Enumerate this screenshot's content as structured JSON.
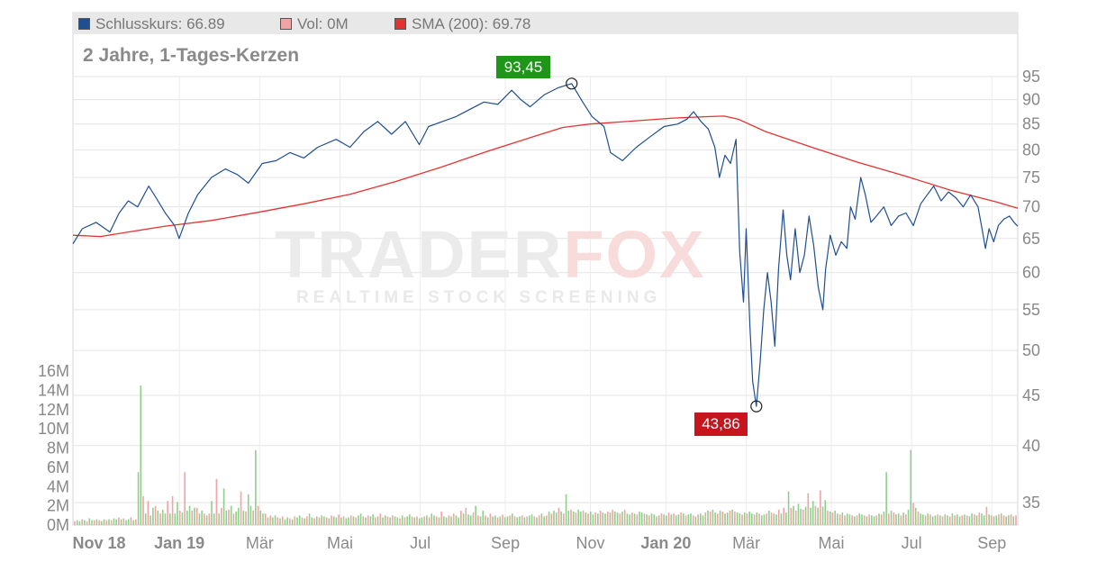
{
  "legend": {
    "close_label": "Schlusskurs: 66.89",
    "vol_label": "Vol: 0M",
    "sma_label": "SMA (200): 69.78"
  },
  "subtitle": "2 Jahre, 1-Tages-Kerzen",
  "watermark": {
    "brand_a": "TRADER",
    "brand_b": "FOX",
    "tagline": "REALTIME STOCK SCREENING"
  },
  "colors": {
    "price": "#1f4e91",
    "sma": "#e8312f",
    "high_badge": "#1e9618",
    "low_badge": "#c8141c",
    "vol_up": "#8ed08a",
    "vol_down": "#f2a3a6"
  },
  "chart_data": {
    "type": "line",
    "title": "2 Jahre, 1-Tages-Kerzen",
    "x_tick_labels": [
      "Nov 18",
      "Jan 19",
      "Mär",
      "Mai",
      "Jul",
      "Sep",
      "Nov",
      "Jan 20",
      "Mär",
      "Mai",
      "Jul",
      "Sep"
    ],
    "x_bold_ticks": [
      "Nov 18",
      "Jan 19",
      "Jan 20"
    ],
    "y_price_ticks": [
      95,
      90,
      85,
      80,
      75,
      70,
      65,
      60,
      55,
      50,
      45,
      40,
      35
    ],
    "y_price_scale": "log",
    "y_volume_ticks": [
      "16M",
      "14M",
      "12M",
      "10M",
      "8M",
      "6M",
      "4M",
      "2M",
      "0M"
    ],
    "volume_range": [
      0,
      16
    ],
    "annotations": {
      "high": "93,45",
      "low": "43,86"
    },
    "high_value": 93.45,
    "low_value": 43.86,
    "series": [
      {
        "name": "Schlusskurs",
        "points": [
          [
            0,
            64.2
          ],
          [
            10,
            66.5
          ],
          [
            25,
            67.5
          ],
          [
            40,
            66.0
          ],
          [
            50,
            69.0
          ],
          [
            60,
            71.0
          ],
          [
            70,
            70.0
          ],
          [
            82,
            73.5
          ],
          [
            90,
            71.5
          ],
          [
            100,
            69.0
          ],
          [
            110,
            67.0
          ],
          [
            115,
            65.0
          ],
          [
            125,
            69.0
          ],
          [
            135,
            72.0
          ],
          [
            150,
            75.0
          ],
          [
            165,
            76.5
          ],
          [
            178,
            75.5
          ],
          [
            190,
            74.0
          ],
          [
            205,
            77.5
          ],
          [
            220,
            78.0
          ],
          [
            235,
            79.5
          ],
          [
            250,
            78.5
          ],
          [
            265,
            80.5
          ],
          [
            285,
            82.0
          ],
          [
            300,
            80.5
          ],
          [
            315,
            83.5
          ],
          [
            330,
            85.5
          ],
          [
            345,
            83.0
          ],
          [
            360,
            85.5
          ],
          [
            375,
            81.0
          ],
          [
            385,
            84.5
          ],
          [
            400,
            85.5
          ],
          [
            415,
            86.5
          ],
          [
            430,
            88.0
          ],
          [
            445,
            89.5
          ],
          [
            460,
            89.0
          ],
          [
            475,
            92.0
          ],
          [
            485,
            90.0
          ],
          [
            495,
            88.5
          ],
          [
            510,
            91.0
          ],
          [
            525,
            92.5
          ],
          [
            540,
            93.45
          ],
          [
            552,
            89.5
          ],
          [
            562,
            86.5
          ],
          [
            575,
            84.5
          ],
          [
            582,
            79.5
          ],
          [
            595,
            78.0
          ],
          [
            610,
            80.5
          ],
          [
            625,
            82.5
          ],
          [
            640,
            84.5
          ],
          [
            655,
            85.0
          ],
          [
            665,
            86.0
          ],
          [
            672,
            87.5
          ],
          [
            680,
            85.5
          ],
          [
            688,
            84.0
          ],
          [
            695,
            80.5
          ],
          [
            700,
            75.0
          ],
          [
            706,
            79.0
          ],
          [
            712,
            77.5
          ],
          [
            718,
            82.0
          ],
          [
            722,
            63.0
          ],
          [
            726,
            56.0
          ],
          [
            729,
            66.5
          ],
          [
            733,
            53.0
          ],
          [
            736,
            46.5
          ],
          [
            740,
            43.86
          ],
          [
            744,
            48.5
          ],
          [
            748,
            55.0
          ],
          [
            752,
            60.0
          ],
          [
            756,
            56.0
          ],
          [
            760,
            50.5
          ],
          [
            764,
            60.5
          ],
          [
            769,
            69.5
          ],
          [
            773,
            62.5
          ],
          [
            777,
            59.0
          ],
          [
            782,
            66.5
          ],
          [
            787,
            60.0
          ],
          [
            792,
            62.5
          ],
          [
            797,
            68.5
          ],
          [
            802,
            64.0
          ],
          [
            807,
            58.0
          ],
          [
            812,
            55.0
          ],
          [
            815,
            60.5
          ],
          [
            820,
            65.5
          ],
          [
            826,
            62.5
          ],
          [
            832,
            64.5
          ],
          [
            838,
            63.5
          ],
          [
            842,
            70.0
          ],
          [
            847,
            68.0
          ],
          [
            853,
            75.0
          ],
          [
            858,
            72.0
          ],
          [
            864,
            67.5
          ],
          [
            870,
            68.5
          ],
          [
            878,
            70.0
          ],
          [
            886,
            67.0
          ],
          [
            894,
            68.5
          ],
          [
            902,
            69.0
          ],
          [
            910,
            67.0
          ],
          [
            918,
            70.5
          ],
          [
            925,
            72.0
          ],
          [
            932,
            73.5
          ],
          [
            940,
            71.0
          ],
          [
            948,
            72.5
          ],
          [
            956,
            71.5
          ],
          [
            964,
            70.0
          ],
          [
            972,
            72.0
          ],
          [
            980,
            70.0
          ],
          [
            985,
            66.0
          ],
          [
            988,
            63.5
          ],
          [
            992,
            66.5
          ],
          [
            997,
            64.5
          ],
          [
            1002,
            67.0
          ],
          [
            1008,
            68.0
          ],
          [
            1014,
            68.5
          ],
          [
            1019,
            67.5
          ],
          [
            1023,
            66.89
          ]
        ]
      },
      {
        "name": "SMA (200)",
        "points": [
          [
            0,
            65.5
          ],
          [
            30,
            65.3
          ],
          [
            60,
            66.0
          ],
          [
            100,
            66.9
          ],
          [
            150,
            67.8
          ],
          [
            200,
            69.1
          ],
          [
            250,
            70.5
          ],
          [
            300,
            72.1
          ],
          [
            350,
            74.3
          ],
          [
            400,
            76.9
          ],
          [
            450,
            79.8
          ],
          [
            500,
            82.6
          ],
          [
            530,
            84.3
          ],
          [
            560,
            85.0
          ],
          [
            600,
            85.5
          ],
          [
            650,
            86.2
          ],
          [
            690,
            86.5
          ],
          [
            705,
            86.6
          ],
          [
            720,
            86.0
          ],
          [
            750,
            83.5
          ],
          [
            800,
            80.5
          ],
          [
            850,
            77.7
          ],
          [
            900,
            75.3
          ],
          [
            950,
            72.8
          ],
          [
            1000,
            70.8
          ],
          [
            1023,
            69.78
          ]
        ]
      }
    ],
    "volume_M": [
      0.4,
      0.5,
      0.4,
      0.6,
      0.5,
      0.4,
      0.7,
      0.5,
      0.5,
      0.6,
      0.5,
      0.4,
      0.6,
      0.5,
      0.6,
      0.5,
      0.7,
      0.6,
      0.8,
      0.6,
      0.7,
      0.5,
      0.6,
      0.8,
      0.5,
      0.6,
      5.5,
      14.5,
      3.0,
      1.2,
      2.5,
      1.0,
      1.8,
      2.0,
      1.5,
      1.2,
      1.6,
      1.2,
      2.5,
      1.2,
      3.0,
      1.2,
      2.4,
      1.5,
      1.3,
      5.5,
      1.5,
      2.0,
      1.5,
      1.8,
      1.8,
      1.2,
      1.5,
      1.2,
      1.0,
      1.2,
      2.5,
      1.2,
      4.8,
      1.2,
      1.8,
      3.8,
      1.5,
      1.6,
      2.0,
      1.2,
      1.4,
      1.8,
      3.5,
      1.5,
      1.4,
      3.2,
      2.0,
      1.5,
      7.8,
      2.0,
      1.5,
      1.2,
      1.2,
      0.8,
      1.0,
      0.8,
      1.0,
      0.8,
      0.7,
      0.9,
      0.6,
      0.8,
      0.7,
      0.6,
      0.9,
      0.8,
      1.0,
      0.8,
      0.7,
      0.9,
      1.2,
      0.8,
      0.7,
      0.9,
      0.8,
      1.0,
      0.9,
      0.8,
      0.7,
      1.0,
      0.9,
      0.8,
      1.1,
      0.8,
      0.9,
      0.7,
      0.8,
      1.0,
      0.9,
      0.8,
      1.0,
      1.2,
      0.9,
      0.8,
      1.0,
      0.9,
      1.1,
      0.8,
      0.9,
      1.2,
      0.8,
      1.0,
      0.9,
      0.8,
      1.0,
      0.9,
      0.8,
      0.7,
      1.0,
      0.8,
      0.9,
      1.1,
      0.9,
      0.8,
      0.9,
      0.7,
      0.8,
      0.9,
      1.0,
      0.8,
      1.2,
      1.0,
      0.9,
      0.8,
      1.4,
      0.9,
      0.8,
      1.0,
      0.9,
      1.2,
      1.0,
      0.8,
      1.5,
      1.2,
      1.8,
      1.1,
      1.0,
      1.3,
      2.0,
      1.0,
      0.9,
      1.5,
      1.0,
      0.8,
      1.2,
      0.9,
      1.0,
      0.8,
      0.9,
      1.1,
      0.8,
      0.9,
      1.0,
      1.2,
      0.9,
      0.8,
      0.9,
      1.0,
      0.8,
      0.9,
      1.0,
      1.1,
      0.9,
      0.8,
      1.0,
      1.2,
      0.9,
      1.0,
      1.4,
      1.2,
      1.5,
      1.3,
      1.8,
      1.4,
      1.2,
      3.2,
      1.5,
      1.6,
      1.4,
      1.3,
      1.6,
      1.4,
      1.5,
      1.3,
      1.2,
      1.4,
      1.1,
      1.3,
      1.2,
      1.5,
      1.3,
      1.2,
      1.4,
      1.3,
      1.6,
      1.4,
      1.3,
      1.2,
      1.4,
      1.6,
      1.2,
      1.1,
      1.3,
      1.2,
      1.1,
      1.4,
      1.3,
      1.2,
      1.1,
      1.0,
      1.2,
      1.1,
      0.9,
      1.0,
      1.2,
      1.1,
      1.0,
      1.3,
      1.1,
      1.2,
      1.0,
      1.1,
      1.3,
      1.2,
      1.0,
      1.1,
      1.2,
      1.0,
      0.9,
      1.1,
      1.2,
      1.0,
      1.3,
      1.5,
      1.4,
      1.6,
      1.3,
      1.2,
      1.5,
      1.4,
      1.2,
      1.3,
      1.5,
      1.6,
      1.4,
      1.3,
      1.2,
      1.1,
      1.3,
      1.2,
      1.4,
      1.2,
      1.1,
      1.3,
      1.2,
      1.0,
      1.1,
      1.2,
      1.5,
      1.3,
      1.2,
      1.1,
      1.6,
      1.2,
      1.8,
      1.3,
      3.5,
      1.8,
      2.0,
      1.5,
      2.2,
      1.7,
      1.6,
      1.9,
      3.3,
      1.8,
      2.5,
      2.0,
      1.8,
      3.6,
      1.9,
      2.6,
      1.5,
      1.4,
      1.3,
      1.5,
      1.2,
      1.1,
      1.3,
      1.0,
      1.2,
      1.1,
      1.0,
      0.9,
      1.0,
      1.2,
      1.1,
      1.0,
      0.9,
      1.1,
      1.0,
      0.9,
      1.0,
      1.2,
      1.1,
      1.4,
      5.5,
      1.2,
      1.5,
      1.3,
      1.1,
      1.2,
      1.0,
      1.3,
      1.1,
      1.6,
      7.8,
      2.3,
      1.8,
      1.4,
      1.2,
      1.1,
      1.0,
      1.2,
      1.1,
      0.9,
      1.0,
      1.1,
      1.0,
      0.9,
      1.1,
      1.0,
      0.9,
      1.2,
      1.0,
      1.1,
      0.9,
      1.0,
      1.1,
      1.0,
      0.9,
      1.2,
      1.1,
      1.0,
      1.3,
      1.2,
      1.0,
      1.9,
      1.1,
      1.0,
      0.9,
      1.0,
      1.1,
      1.2,
      1.0,
      0.9,
      1.0,
      1.1,
      0.9,
      1.0
    ]
  }
}
